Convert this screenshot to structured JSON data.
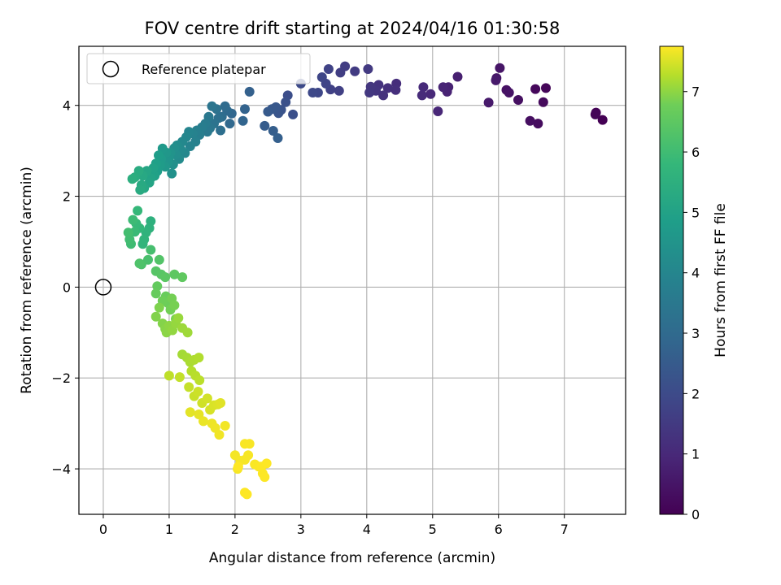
{
  "chart_data": {
    "type": "scatter",
    "title": "FOV centre drift starting at 2024/04/16 01:30:58",
    "xlabel": "Angular distance from reference (arcmin)",
    "ylabel": "Rotation from reference (arcmin)",
    "xlim": [
      -0.37,
      7.93
    ],
    "ylim": [
      -5.0,
      5.3
    ],
    "xticks": [
      0,
      1,
      2,
      3,
      4,
      5,
      6,
      7
    ],
    "yticks": [
      -4,
      -2,
      0,
      2,
      4
    ],
    "grid": true,
    "colormap": "viridis",
    "legend": {
      "location": "upper-left",
      "entries": [
        "Reference platepar"
      ]
    },
    "reference_point": {
      "x": 0,
      "y": 0,
      "label": "Reference platepar"
    },
    "colorbar": {
      "label": "Hours from first FF file",
      "min": 0,
      "max": 7.75,
      "ticks": [
        0,
        1,
        2,
        3,
        4,
        5,
        6,
        7
      ]
    },
    "points": [
      [
        7.58,
        3.68,
        0.0
      ],
      [
        7.48,
        3.84,
        0.04
      ],
      [
        7.47,
        3.8,
        0.08
      ],
      [
        6.72,
        4.38,
        0.12
      ],
      [
        6.56,
        4.36,
        0.16
      ],
      [
        6.68,
        4.07,
        0.2
      ],
      [
        6.6,
        3.6,
        0.24
      ],
      [
        6.48,
        3.66,
        0.28
      ],
      [
        6.3,
        4.12,
        0.32
      ],
      [
        6.12,
        4.34,
        0.36
      ],
      [
        6.16,
        4.28,
        0.4
      ],
      [
        6.02,
        4.82,
        0.44
      ],
      [
        5.97,
        4.6,
        0.48
      ],
      [
        5.96,
        4.55,
        0.52
      ],
      [
        5.85,
        4.06,
        0.56
      ],
      [
        5.38,
        4.63,
        0.68
      ],
      [
        5.24,
        4.4,
        0.72
      ],
      [
        5.22,
        4.3,
        0.76
      ],
      [
        5.16,
        4.4,
        0.8
      ],
      [
        5.08,
        3.87,
        0.84
      ],
      [
        4.97,
        4.25,
        0.88
      ],
      [
        4.86,
        4.4,
        0.92
      ],
      [
        4.84,
        4.22,
        0.96
      ],
      [
        4.45,
        4.48,
        1.0
      ],
      [
        4.44,
        4.34,
        1.04
      ],
      [
        4.32,
        4.38,
        1.08
      ],
      [
        4.25,
        4.22,
        1.12
      ],
      [
        4.18,
        4.45,
        1.16
      ],
      [
        4.14,
        4.32,
        1.2
      ],
      [
        4.06,
        4.41,
        1.24
      ],
      [
        4.04,
        4.28,
        1.28
      ],
      [
        4.02,
        4.8,
        1.32
      ],
      [
        3.82,
        4.75,
        1.36
      ],
      [
        3.67,
        4.86,
        1.4
      ],
      [
        3.6,
        4.72,
        1.44
      ],
      [
        3.58,
        4.32,
        1.48
      ],
      [
        3.45,
        4.35,
        1.52
      ],
      [
        3.42,
        4.8,
        1.56
      ],
      [
        3.38,
        4.48,
        1.6
      ],
      [
        3.32,
        4.62,
        1.64
      ],
      [
        3.26,
        4.28,
        1.68
      ],
      [
        3.18,
        4.28,
        1.72
      ],
      [
        3.0,
        4.48,
        1.76
      ],
      [
        2.8,
        4.22,
        1.85
      ],
      [
        2.88,
        3.8,
        1.9
      ],
      [
        2.77,
        4.07,
        1.95
      ],
      [
        2.7,
        3.9,
        2.0
      ],
      [
        2.66,
        3.83,
        2.05
      ],
      [
        2.62,
        3.96,
        2.1
      ],
      [
        2.56,
        3.92,
        2.15
      ],
      [
        2.5,
        3.86,
        2.2
      ],
      [
        2.45,
        3.55,
        2.25
      ],
      [
        2.58,
        3.44,
        2.3
      ],
      [
        2.65,
        3.28,
        2.35
      ],
      [
        2.22,
        4.3,
        2.4
      ],
      [
        2.15,
        3.92,
        2.45
      ],
      [
        2.12,
        3.66,
        2.5
      ],
      [
        1.95,
        3.82,
        2.55
      ],
      [
        1.92,
        3.6,
        2.6
      ],
      [
        1.88,
        3.88,
        2.65
      ],
      [
        1.85,
        3.98,
        2.7
      ],
      [
        1.8,
        3.75,
        2.75
      ],
      [
        1.78,
        3.45,
        2.8
      ],
      [
        1.75,
        3.72,
        2.85
      ],
      [
        1.72,
        3.92,
        2.9
      ],
      [
        1.68,
        3.6,
        2.95
      ],
      [
        1.65,
        3.98,
        3.0
      ],
      [
        1.62,
        3.5,
        3.05
      ],
      [
        1.6,
        3.75,
        3.1
      ],
      [
        1.58,
        3.42,
        3.15
      ],
      [
        1.55,
        3.6,
        3.2
      ],
      [
        1.5,
        3.52,
        3.28
      ],
      [
        1.46,
        3.35,
        3.32
      ],
      [
        1.42,
        3.45,
        3.36
      ],
      [
        1.4,
        3.2,
        3.4
      ],
      [
        1.36,
        3.38,
        3.44
      ],
      [
        1.32,
        3.1,
        3.48
      ],
      [
        1.3,
        3.42,
        3.52
      ],
      [
        1.26,
        3.3,
        3.56
      ],
      [
        1.24,
        2.95,
        3.6
      ],
      [
        1.2,
        3.2,
        3.64
      ],
      [
        1.18,
        3.02,
        3.68
      ],
      [
        1.15,
        2.82,
        3.72
      ],
      [
        1.12,
        3.12,
        3.76
      ],
      [
        1.1,
        2.92,
        3.8
      ],
      [
        1.08,
        3.06,
        3.84
      ],
      [
        1.06,
        2.7,
        3.88
      ],
      [
        1.04,
        2.5,
        3.92
      ],
      [
        1.02,
        2.95,
        3.96
      ],
      [
        1.0,
        2.85,
        4.0
      ],
      [
        0.98,
        2.75,
        4.04
      ],
      [
        0.96,
        2.96,
        4.08
      ],
      [
        0.94,
        2.65,
        4.12
      ],
      [
        0.9,
        3.05,
        4.16
      ],
      [
        0.88,
        2.82,
        4.2
      ],
      [
        0.86,
        2.68,
        4.24
      ],
      [
        0.84,
        2.9,
        4.28
      ],
      [
        0.82,
        2.55,
        4.32
      ],
      [
        0.8,
        2.72,
        4.36
      ],
      [
        0.78,
        2.45,
        4.4
      ],
      [
        0.76,
        2.62,
        4.44
      ],
      [
        0.72,
        2.4,
        4.48
      ],
      [
        0.7,
        2.3,
        4.52
      ],
      [
        0.66,
        2.56,
        4.56
      ],
      [
        0.62,
        2.18,
        4.6
      ],
      [
        0.6,
        2.45,
        4.64
      ],
      [
        0.58,
        2.25,
        4.68
      ],
      [
        0.56,
        2.14,
        4.72
      ],
      [
        0.54,
        2.56,
        4.76
      ],
      [
        0.48,
        2.42,
        4.8
      ],
      [
        0.44,
        2.38,
        4.84
      ],
      [
        0.72,
        1.45,
        4.92
      ],
      [
        0.7,
        1.3,
        4.96
      ],
      [
        0.65,
        1.2,
        5.0
      ],
      [
        0.62,
        1.05,
        5.04
      ],
      [
        0.6,
        0.95,
        5.08
      ],
      [
        0.55,
        1.3,
        5.12
      ],
      [
        0.52,
        1.68,
        5.16
      ],
      [
        0.5,
        1.4,
        5.2
      ],
      [
        0.48,
        1.22,
        5.24
      ],
      [
        0.45,
        1.48,
        5.28
      ],
      [
        0.42,
        0.95,
        5.32
      ],
      [
        0.4,
        1.05,
        5.36
      ],
      [
        0.38,
        1.2,
        5.4
      ],
      [
        0.72,
        0.82,
        5.44
      ],
      [
        0.68,
        0.6,
        5.48
      ],
      [
        0.58,
        0.5,
        5.52
      ],
      [
        0.55,
        0.52,
        5.56
      ],
      [
        0.85,
        0.6,
        5.62
      ],
      [
        0.8,
        0.35,
        5.66
      ],
      [
        0.88,
        0.28,
        5.7
      ],
      [
        0.94,
        0.22,
        5.74
      ],
      [
        1.08,
        0.28,
        5.78
      ],
      [
        1.2,
        0.22,
        5.82
      ],
      [
        0.82,
        0.02,
        5.86
      ],
      [
        0.8,
        -0.14,
        5.9
      ],
      [
        0.95,
        -0.2,
        5.94
      ],
      [
        0.98,
        -0.35,
        5.98
      ],
      [
        0.9,
        -0.3,
        6.02
      ],
      [
        1.02,
        -0.5,
        6.06
      ],
      [
        1.04,
        -0.25,
        6.1
      ],
      [
        1.08,
        -0.4,
        6.14
      ],
      [
        1.1,
        -0.7,
        6.18
      ],
      [
        0.85,
        -0.45,
        6.22
      ],
      [
        0.8,
        -0.65,
        6.26
      ],
      [
        0.9,
        -0.8,
        6.3
      ],
      [
        0.94,
        -0.92,
        6.34
      ],
      [
        0.96,
        -1.0,
        6.38
      ],
      [
        1.0,
        -0.85,
        6.42
      ],
      [
        1.05,
        -0.95,
        6.46
      ],
      [
        1.1,
        -0.8,
        6.5
      ],
      [
        1.14,
        -0.68,
        6.54
      ],
      [
        1.2,
        -0.9,
        6.58
      ],
      [
        1.28,
        -1.0,
        6.62
      ],
      [
        1.2,
        -1.48,
        6.68
      ],
      [
        1.27,
        -1.55,
        6.72
      ],
      [
        1.32,
        -1.65,
        6.76
      ],
      [
        1.38,
        -1.6,
        6.8
      ],
      [
        1.45,
        -1.55,
        6.84
      ],
      [
        1.34,
        -1.85,
        6.88
      ],
      [
        1.4,
        -1.95,
        6.92
      ],
      [
        1.46,
        -2.05,
        6.96
      ],
      [
        1.0,
        -1.95,
        7.0
      ],
      [
        1.16,
        -1.98,
        7.04
      ],
      [
        1.3,
        -2.2,
        7.08
      ],
      [
        1.38,
        -2.4,
        7.12
      ],
      [
        1.44,
        -2.3,
        7.16
      ],
      [
        1.5,
        -2.55,
        7.2
      ],
      [
        1.58,
        -2.45,
        7.24
      ],
      [
        1.62,
        -2.7,
        7.28
      ],
      [
        1.68,
        -2.6,
        7.32
      ],
      [
        1.74,
        -2.58,
        7.36
      ],
      [
        1.78,
        -2.55,
        7.4
      ],
      [
        1.32,
        -2.75,
        7.44
      ],
      [
        1.45,
        -2.8,
        7.48
      ],
      [
        1.52,
        -2.95,
        7.52
      ],
      [
        1.65,
        -3.0,
        7.56
      ],
      [
        1.7,
        -3.1,
        7.58
      ],
      [
        1.76,
        -3.25,
        7.6
      ],
      [
        1.85,
        -3.05,
        7.62
      ],
      [
        2.0,
        -3.7,
        7.64
      ],
      [
        2.08,
        -3.82,
        7.65
      ],
      [
        2.04,
        -4.0,
        7.66
      ],
      [
        2.15,
        -3.8,
        7.67
      ],
      [
        2.2,
        -3.7,
        7.68
      ],
      [
        2.22,
        -3.45,
        7.69
      ],
      [
        2.15,
        -3.45,
        7.7
      ],
      [
        2.3,
        -3.9,
        7.71
      ],
      [
        2.36,
        -3.95,
        7.72
      ],
      [
        2.42,
        -4.1,
        7.73
      ],
      [
        2.45,
        -4.18,
        7.74
      ],
      [
        2.4,
        -3.95,
        7.74
      ],
      [
        2.48,
        -3.88,
        7.75
      ],
      [
        2.15,
        -4.52,
        7.75
      ],
      [
        2.18,
        -4.56,
        7.75
      ],
      [
        2.05,
        -3.95,
        7.75
      ]
    ]
  }
}
